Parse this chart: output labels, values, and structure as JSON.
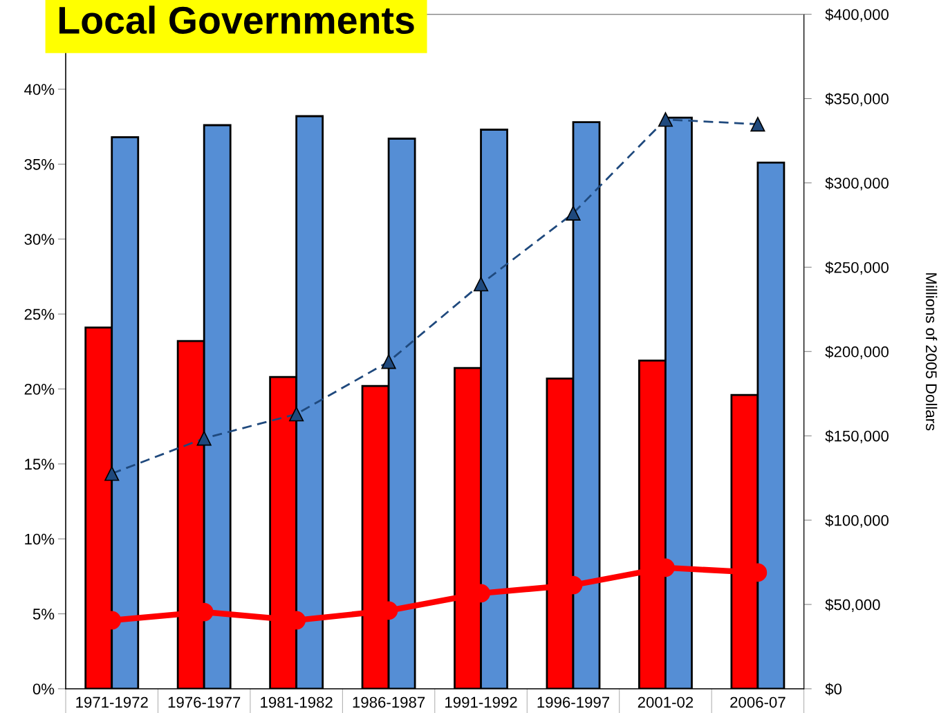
{
  "chart_data": {
    "type": "bar",
    "title": "Local Governments",
    "y2label": "Millions of 2005 Dollars",
    "categories": [
      "1971-1972",
      "1976-1977",
      "1981-1982",
      "1986-1987",
      "1991-1992",
      "1996-1997",
      "2001-02",
      "2006-07"
    ],
    "series": [
      {
        "color": "#ff0000",
        "values": [
          24.1,
          23.2,
          20.8,
          20.2,
          21.4,
          20.7,
          21.9,
          19.6
        ]
      },
      {
        "color": "#558ed5",
        "values": [
          36.8,
          37.6,
          38.2,
          36.7,
          37.3,
          37.8,
          38.1,
          35.1
        ]
      },
      {
        "type": "line",
        "axis": "y2",
        "color": "#ff0000",
        "marker": "circle",
        "line_style": "solid",
        "values": [
          40600,
          45500,
          40600,
          46400,
          56600,
          61500,
          71800,
          68900
        ]
      },
      {
        "type": "line",
        "axis": "y2",
        "color": "#1f497d",
        "marker": "triangle",
        "line_style": "dashed",
        "values": [
          127600,
          148500,
          162900,
          194000,
          240000,
          282000,
          337600,
          334800
        ]
      }
    ],
    "ylim": [
      0,
      45
    ],
    "yticks": [
      {
        "value": 0,
        "label": "0%"
      },
      {
        "value": 5,
        "label": "5%"
      },
      {
        "value": 10,
        "label": "10%"
      },
      {
        "value": 15,
        "label": "15%"
      },
      {
        "value": 20,
        "label": "20%"
      },
      {
        "value": 25,
        "label": "25%"
      },
      {
        "value": 30,
        "label": "30%"
      },
      {
        "value": 35,
        "label": "35%"
      },
      {
        "value": 40,
        "label": "40%"
      }
    ],
    "y2lim": [
      0,
      400000
    ],
    "y2ticks": [
      {
        "value": 0,
        "label": "$0"
      },
      {
        "value": 50000,
        "label": "$50,000"
      },
      {
        "value": 100000,
        "label": "$100,000"
      },
      {
        "value": 150000,
        "label": "$150,000"
      },
      {
        "value": 200000,
        "label": "$200,000"
      },
      {
        "value": 250000,
        "label": "$250,000"
      },
      {
        "value": 300000,
        "label": "$300,000"
      },
      {
        "value": 350000,
        "label": "$350,000"
      },
      {
        "value": 400000,
        "label": "$400,000"
      }
    ],
    "grid": false,
    "legend": false
  }
}
